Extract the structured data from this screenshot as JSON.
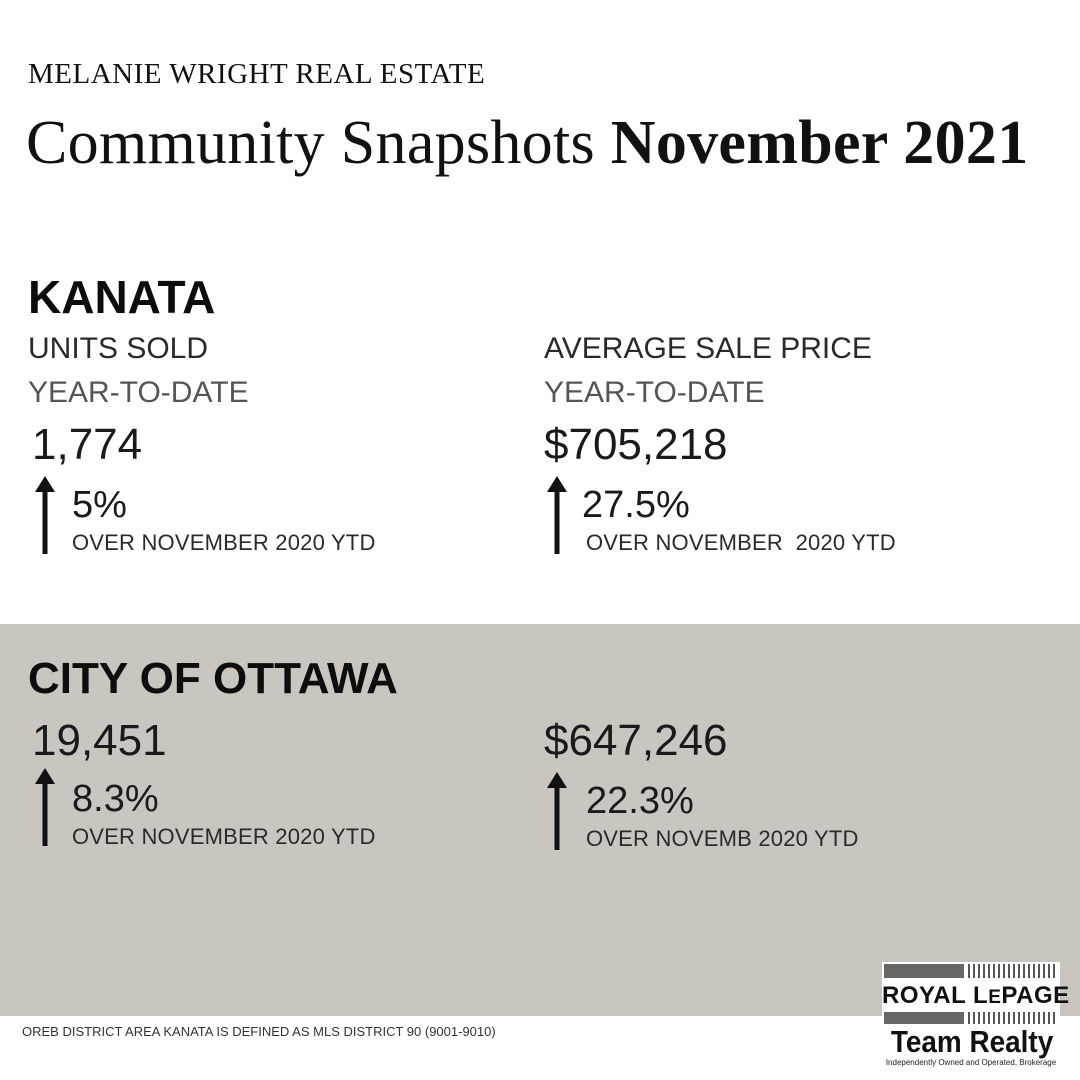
{
  "brand": "MELANIE WRIGHT REAL ESTATE",
  "title": {
    "regular": "Community Snapshots ",
    "bold": "November 2021"
  },
  "kanata": {
    "heading": "KANATA",
    "units": {
      "label": "UNITS SOLD",
      "period": "YEAR-TO-DATE",
      "value": "1,774",
      "change": "5%",
      "comparison": "OVER NOVEMBER 2020 YTD"
    },
    "price": {
      "label": "AVERAGE SALE PRICE",
      "period": "YEAR-TO-DATE",
      "value": "$705,218",
      "change": "27.5%",
      "comparison": "OVER NOVEMBER  2020 YTD"
    }
  },
  "ottawa": {
    "heading": "CITY OF OTTAWA",
    "units": {
      "value": "19,451",
      "change": "8.3%",
      "comparison": "OVER NOVEMBER 2020 YTD"
    },
    "price": {
      "value": "$647,246",
      "change": "22.3%",
      "comparison": "OVER NOVEMB 2020 YTD"
    }
  },
  "footnote": "OREB DISTRICT AREA KANATA IS DEFINED AS MLS DISTRICT 90 (9001-9010)",
  "logo": {
    "royal_1": "ROYAL L",
    "royal_small": "E",
    "royal_2": "PAGE",
    "team": "Team Realty",
    "tagline": "Independently Owned and Operated, Brokerage"
  },
  "colors": {
    "ottawa_background": "#cbc5c0",
    "text": "#111111"
  },
  "icons": {
    "trend": "arrow-up-icon"
  }
}
